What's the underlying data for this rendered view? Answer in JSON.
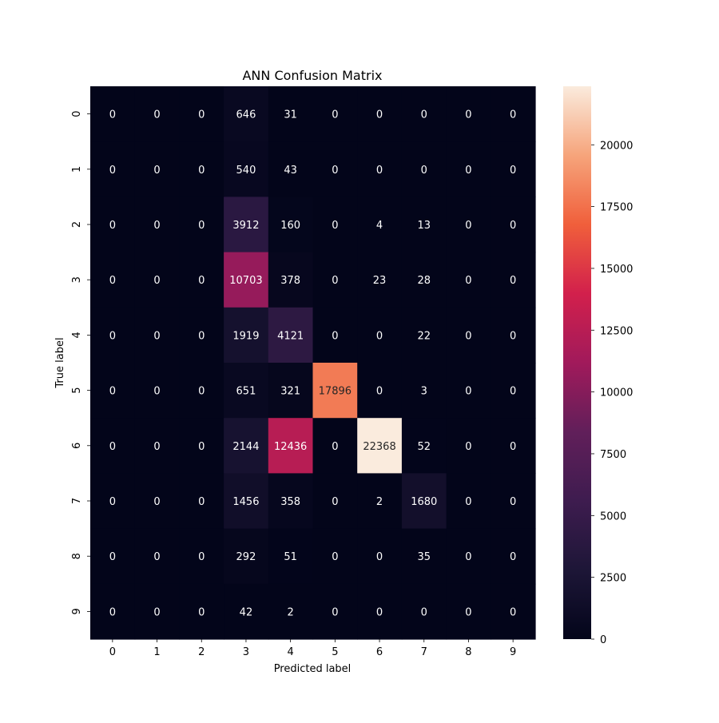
{
  "chart_data": {
    "type": "heatmap",
    "title": "ANN Confusion Matrix",
    "xlabel": "Predicted label",
    "ylabel": "True label",
    "x_categories": [
      "0",
      "1",
      "2",
      "3",
      "4",
      "5",
      "6",
      "7",
      "8",
      "9"
    ],
    "y_categories": [
      "0",
      "1",
      "2",
      "3",
      "4",
      "5",
      "6",
      "7",
      "8",
      "9"
    ],
    "values": [
      [
        0,
        0,
        0,
        646,
        31,
        0,
        0,
        0,
        0,
        0
      ],
      [
        0,
        0,
        0,
        540,
        43,
        0,
        0,
        0,
        0,
        0
      ],
      [
        0,
        0,
        0,
        3912,
        160,
        0,
        4,
        13,
        0,
        0
      ],
      [
        0,
        0,
        0,
        10703,
        378,
        0,
        23,
        28,
        0,
        0
      ],
      [
        0,
        0,
        0,
        1919,
        4121,
        0,
        0,
        22,
        0,
        0
      ],
      [
        0,
        0,
        0,
        651,
        321,
        17896,
        0,
        3,
        0,
        0
      ],
      [
        0,
        0,
        0,
        2144,
        12436,
        0,
        22368,
        52,
        0,
        0
      ],
      [
        0,
        0,
        0,
        1456,
        358,
        0,
        2,
        1680,
        0,
        0
      ],
      [
        0,
        0,
        0,
        292,
        51,
        0,
        0,
        35,
        0,
        0
      ],
      [
        0,
        0,
        0,
        42,
        2,
        0,
        0,
        0,
        0,
        0
      ]
    ],
    "colorbar": {
      "colormap": "rocket",
      "range": [
        0,
        22368
      ],
      "ticks": [
        0,
        2500,
        5000,
        7500,
        10000,
        12500,
        15000,
        17500,
        20000
      ],
      "tick_labels": [
        "0",
        "2500",
        "5000",
        "7500",
        "10000",
        "12500",
        "15000",
        "17500",
        "20000"
      ]
    },
    "grid": false,
    "legend": "colorbar-right"
  }
}
